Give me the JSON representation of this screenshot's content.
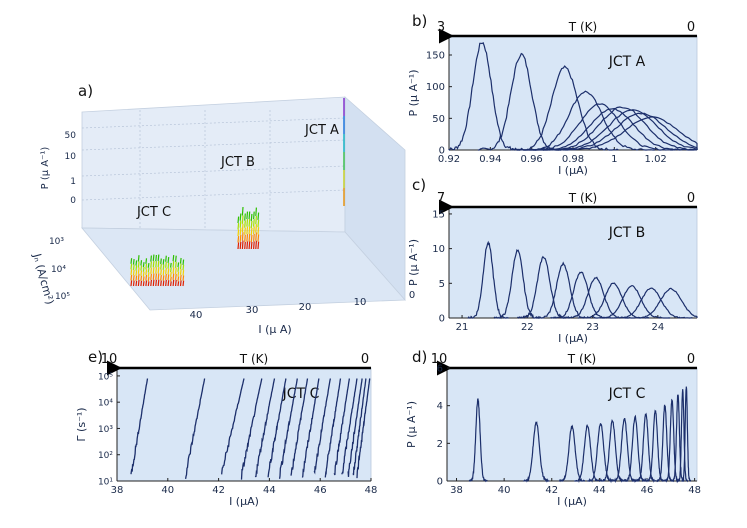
{
  "chart_data": [
    {
      "id": "a",
      "panel_label": "a)",
      "type": "3d-scatter",
      "title": "",
      "zlabel": "P (μ A⁻¹)",
      "ylabel": "Jₙ (A/cm²)",
      "xlabel": "I (μ A)",
      "z_ticks": [
        "50",
        "10",
        "1",
        "0"
      ],
      "y_ticks": [
        "10³",
        "10⁴",
        "10⁵"
      ],
      "x_ticks": [
        "40",
        "30",
        "20",
        "10",
        "0"
      ],
      "annotations": [
        "JCT A",
        "JCT B",
        "JCT C"
      ],
      "colormap": [
        "#e02000",
        "#ff8a00",
        "#f2d000",
        "#a8e000",
        "#2ec000"
      ]
    },
    {
      "id": "b",
      "panel_label": "b)",
      "type": "line",
      "annotation": "JCT A",
      "temperature_arrow": {
        "label": "T (K)",
        "left": "3",
        "right": "0"
      },
      "xlabel": "I (μA)",
      "ylabel": "P (μ A⁻¹)",
      "xlim": [
        0.92,
        1.04
      ],
      "ylim": [
        0,
        180
      ],
      "x_ticks": [
        0.92,
        0.94,
        0.96,
        0.98,
        1.0,
        1.02
      ],
      "x_tick_labels": [
        "0.92",
        "0.94",
        "0.96",
        "0.98",
        "1",
        "1.02"
      ],
      "y_ticks": [
        0,
        50,
        100,
        150
      ],
      "y_tick_labels": [
        "0",
        "50",
        "100",
        "150"
      ],
      "peaks": [
        {
          "center": 0.936,
          "height": 170,
          "width": 0.0045
        },
        {
          "center": 0.955,
          "height": 151,
          "width": 0.005
        },
        {
          "center": 0.976,
          "height": 130,
          "width": 0.0062
        },
        {
          "center": 0.986,
          "height": 92,
          "width": 0.008
        },
        {
          "center": 0.993,
          "height": 73,
          "width": 0.0095
        },
        {
          "center": 0.999,
          "height": 65,
          "width": 0.0105
        },
        {
          "center": 1.004,
          "height": 68,
          "width": 0.011
        },
        {
          "center": 1.009,
          "height": 64,
          "width": 0.0115
        },
        {
          "center": 1.013,
          "height": 58,
          "width": 0.012
        },
        {
          "center": 1.018,
          "height": 52,
          "width": 0.0125
        }
      ]
    },
    {
      "id": "c",
      "panel_label": "c)",
      "type": "line",
      "annotation": "JCT B",
      "temperature_arrow": {
        "label": "T (K)",
        "left": "7",
        "right": "0"
      },
      "xlabel": "I (μA)",
      "ylabel": "P (μ A⁻¹)",
      "xlim": [
        20.8,
        24.6
      ],
      "ylim": [
        0,
        16
      ],
      "x_ticks": [
        21,
        22,
        23,
        24
      ],
      "x_tick_labels": [
        "21",
        "22",
        "23",
        "24"
      ],
      "y_ticks": [
        0,
        5,
        10,
        15
      ],
      "y_tick_labels": [
        "0",
        "5",
        "10",
        "15"
      ],
      "peaks": [
        {
          "center": 21.4,
          "height": 10.8,
          "width": 0.075
        },
        {
          "center": 21.85,
          "height": 9.7,
          "width": 0.085
        },
        {
          "center": 22.25,
          "height": 8.8,
          "width": 0.095
        },
        {
          "center": 22.55,
          "height": 7.8,
          "width": 0.1
        },
        {
          "center": 22.82,
          "height": 6.6,
          "width": 0.11
        },
        {
          "center": 23.05,
          "height": 5.8,
          "width": 0.12
        },
        {
          "center": 23.32,
          "height": 5.0,
          "width": 0.13
        },
        {
          "center": 23.6,
          "height": 4.6,
          "width": 0.14
        },
        {
          "center": 23.9,
          "height": 4.3,
          "width": 0.15
        },
        {
          "center": 24.2,
          "height": 4.2,
          "width": 0.16
        }
      ]
    },
    {
      "id": "e",
      "panel_label": "e)",
      "type": "line",
      "annotation": "JCT C",
      "temperature_arrow": {
        "label": "T (K)",
        "left": "10",
        "right": "0"
      },
      "xlabel": "I (μA)",
      "ylabel": "Γ (s⁻¹)",
      "xlim": [
        38,
        48
      ],
      "ylim_log": [
        10,
        200000
      ],
      "x_ticks": [
        38,
        40,
        42,
        44,
        46,
        48
      ],
      "x_tick_labels": [
        "38",
        "40",
        "42",
        "44",
        "46",
        "48"
      ],
      "y_ticks": [
        10,
        100,
        1000,
        10000,
        100000
      ],
      "y_tick_labels": [
        "10¹",
        "10²",
        "10³",
        "10⁴",
        "10⁵"
      ],
      "curves": [
        {
          "x0": 38.55,
          "x1": 39.2
        },
        {
          "x0": 40.7,
          "x1": 41.45
        },
        {
          "x0": 42.1,
          "x1": 43.0
        },
        {
          "x0": 42.9,
          "x1": 43.7
        },
        {
          "x0": 43.45,
          "x1": 44.2
        },
        {
          "x0": 43.95,
          "x1": 44.65
        },
        {
          "x0": 44.4,
          "x1": 45.1
        },
        {
          "x0": 44.85,
          "x1": 45.5
        },
        {
          "x0": 45.3,
          "x1": 45.95
        },
        {
          "x0": 45.75,
          "x1": 46.4
        },
        {
          "x0": 46.2,
          "x1": 46.8
        },
        {
          "x0": 46.55,
          "x1": 47.15
        },
        {
          "x0": 46.85,
          "x1": 47.45
        },
        {
          "x0": 47.1,
          "x1": 47.65
        },
        {
          "x0": 47.3,
          "x1": 47.8
        },
        {
          "x0": 47.45,
          "x1": 47.95
        }
      ]
    },
    {
      "id": "d",
      "panel_label": "d)",
      "type": "line",
      "annotation": "JCT C",
      "temperature_arrow": {
        "label": "T (K)",
        "left": "10",
        "right": "0"
      },
      "xlabel": "I (μA)",
      "ylabel": "P (μ A⁻¹)",
      "xlim": [
        37.6,
        48.1
      ],
      "ylim": [
        0,
        6
      ],
      "x_ticks": [
        38,
        40,
        42,
        44,
        46,
        48
      ],
      "x_tick_labels": [
        "38",
        "40",
        "42",
        "44",
        "46",
        "48"
      ],
      "y_ticks": [
        0,
        2,
        4,
        6
      ],
      "y_tick_labels": [
        "0",
        "2",
        "4",
        "6"
      ],
      "peaks": [
        {
          "center": 38.9,
          "height": 4.3,
          "width": 0.09
        },
        {
          "center": 41.35,
          "height": 3.1,
          "width": 0.13
        },
        {
          "center": 42.85,
          "height": 2.9,
          "width": 0.13
        },
        {
          "center": 43.5,
          "height": 2.95,
          "width": 0.13
        },
        {
          "center": 44.05,
          "height": 3.05,
          "width": 0.13
        },
        {
          "center": 44.55,
          "height": 3.2,
          "width": 0.12
        },
        {
          "center": 45.05,
          "height": 3.3,
          "width": 0.12
        },
        {
          "center": 45.5,
          "height": 3.4,
          "width": 0.11
        },
        {
          "center": 45.95,
          "height": 3.55,
          "width": 0.1
        },
        {
          "center": 46.35,
          "height": 3.75,
          "width": 0.09
        },
        {
          "center": 46.75,
          "height": 4.0,
          "width": 0.08
        },
        {
          "center": 47.05,
          "height": 4.3,
          "width": 0.07
        },
        {
          "center": 47.3,
          "height": 4.6,
          "width": 0.06
        },
        {
          "center": 47.5,
          "height": 4.85,
          "width": 0.05
        },
        {
          "center": 47.65,
          "height": 5.0,
          "width": 0.045
        }
      ]
    }
  ],
  "colors": {
    "plot_bg": "#d8e6f6",
    "line": "#1c2f6b",
    "axis": "#222222",
    "arrow": "#000000"
  }
}
